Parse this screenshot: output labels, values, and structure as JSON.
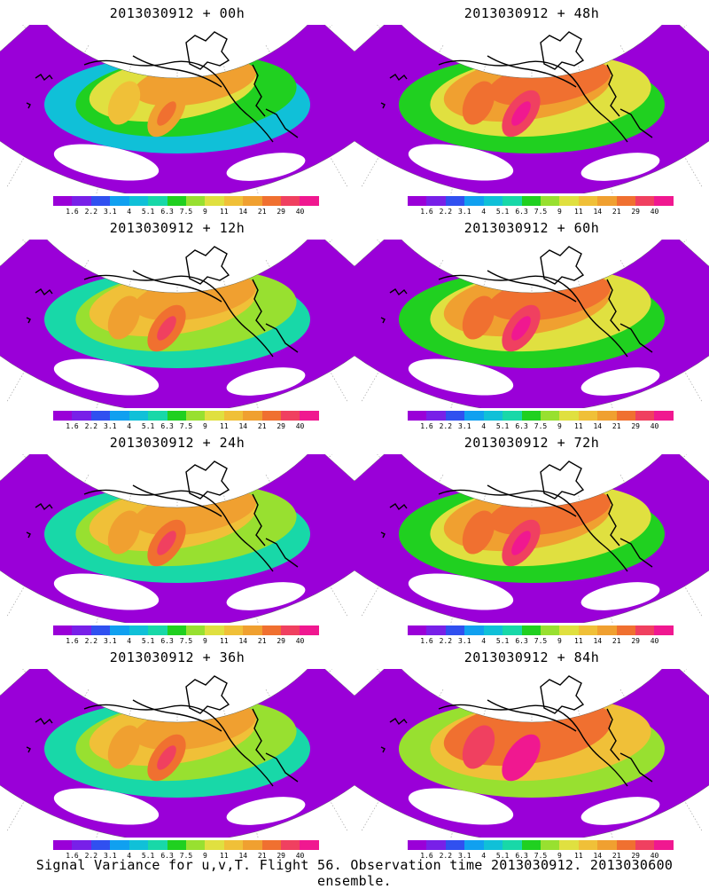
{
  "caption": "Signal Variance for u,v,T. Flight 56. Observation time 2013030912. 2013030600 ensemble.",
  "colorbar": {
    "colors": [
      "#9a00d8",
      "#7820e8",
      "#3050f0",
      "#10a0f0",
      "#10c0d8",
      "#18d8a8",
      "#20d020",
      "#98e030",
      "#e0e040",
      "#f0c038",
      "#f0a030",
      "#f07030",
      "#f04060",
      "#f01890"
    ],
    "labels": [
      "1.6",
      "2.2",
      "3.1",
      "4",
      "5.1",
      "6.3",
      "7.5",
      "9",
      "11",
      "14",
      "21",
      "29",
      "40"
    ]
  },
  "panels": [
    {
      "title": "2013030912 + 00h",
      "intensity": 0.25
    },
    {
      "title": "2013030912 + 48h",
      "intensity": 0.75
    },
    {
      "title": "2013030912 + 12h",
      "intensity": 0.4
    },
    {
      "title": "2013030912 + 60h",
      "intensity": 0.8
    },
    {
      "title": "2013030912 + 24h",
      "intensity": 0.5
    },
    {
      "title": "2013030912 + 72h",
      "intensity": 0.85
    },
    {
      "title": "2013030912 + 36h",
      "intensity": 0.62
    },
    {
      "title": "2013030912 + 84h",
      "intensity": 0.9
    }
  ]
}
